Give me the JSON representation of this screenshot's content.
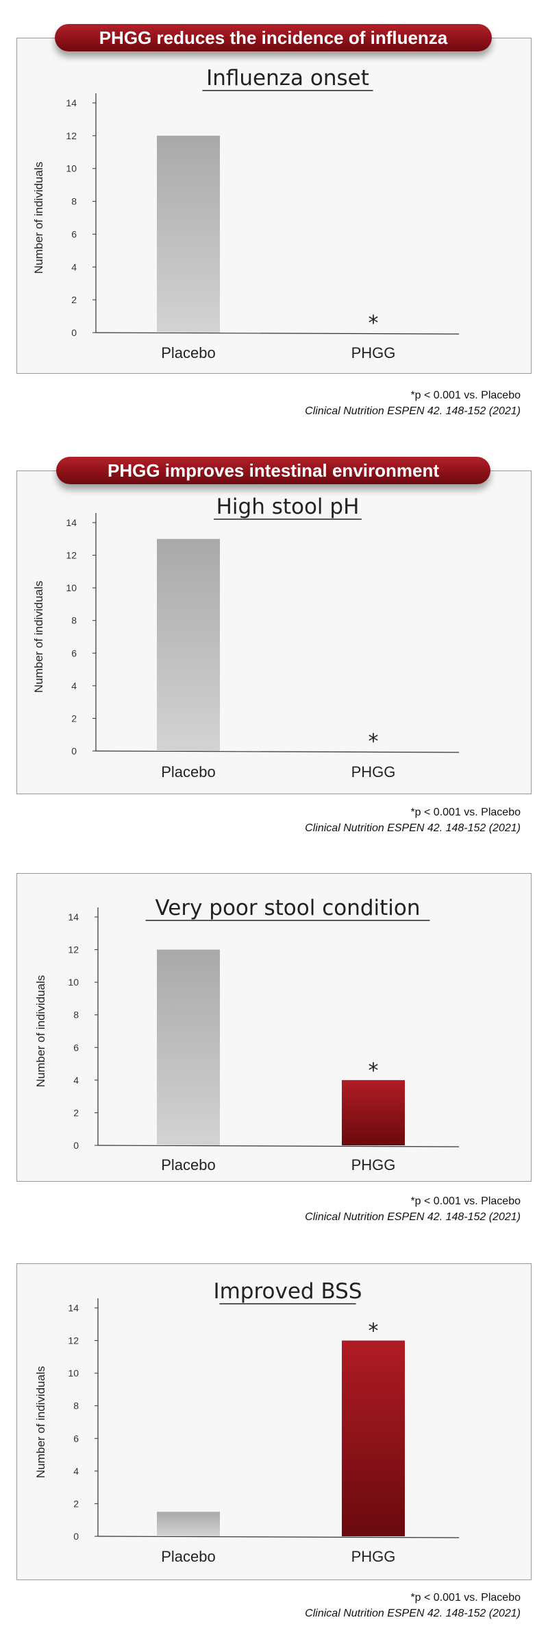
{
  "colors": {
    "placebo_top": "#a9a9a9",
    "placebo_bottom": "#d3d3d3",
    "phgg_top": "#b01c24",
    "phgg_bottom": "#6a0a0e",
    "banner": "#8e1119",
    "panel_bg": "#f7f7f7"
  },
  "sections": [
    {
      "banner": "PHGG reduces the incidence of influenza",
      "footnote": "*p < 0.001 vs. Placebo",
      "reference": "Clinical Nutrition ESPEN 42. 148-152 (2021)"
    },
    {
      "banner": "PHGG improves intestinal environment",
      "footnote": "*p < 0.001 vs. Placebo",
      "reference": "Clinical Nutrition ESPEN 42. 148-152 (2021)"
    },
    {
      "banner": "",
      "footnote": "*p < 0.001 vs. Placebo",
      "reference": "Clinical Nutrition ESPEN 42. 148-152 (2021)"
    },
    {
      "banner": "",
      "footnote": "*p < 0.001 vs. Placebo",
      "reference": "Clinical Nutrition ESPEN 42. 148-152 (2021)"
    }
  ],
  "chart_data": [
    {
      "type": "bar",
      "title": "Influenza onset",
      "ylabel": "Number of individuals",
      "xlabel": "",
      "categories": [
        "Placebo",
        "PHGG"
      ],
      "values": [
        12,
        0
      ],
      "significance": [
        "",
        "*"
      ],
      "ylim": [
        0,
        14
      ],
      "yticks": [
        0,
        2,
        4,
        6,
        8,
        10,
        12,
        14
      ],
      "grid": false
    },
    {
      "type": "bar",
      "title": "High stool pH",
      "ylabel": "Number of individuals",
      "xlabel": "",
      "categories": [
        "Placebo",
        "PHGG"
      ],
      "values": [
        13,
        0
      ],
      "significance": [
        "",
        "*"
      ],
      "ylim": [
        0,
        14
      ],
      "yticks": [
        0,
        2,
        4,
        6,
        8,
        10,
        12,
        14
      ],
      "grid": false
    },
    {
      "type": "bar",
      "title": "Very poor stool condition",
      "ylabel": "Number of individuals",
      "xlabel": "",
      "categories": [
        "Placebo",
        "PHGG"
      ],
      "values": [
        12,
        4
      ],
      "significance": [
        "",
        "*"
      ],
      "ylim": [
        0,
        14
      ],
      "yticks": [
        0,
        2,
        4,
        6,
        8,
        10,
        12,
        14
      ],
      "grid": false
    },
    {
      "type": "bar",
      "title": "Improved BSS",
      "ylabel": "Number of individuals",
      "xlabel": "",
      "categories": [
        "Placebo",
        "PHGG"
      ],
      "values": [
        1.5,
        12
      ],
      "significance": [
        "",
        "*"
      ],
      "ylim": [
        0,
        14
      ],
      "yticks": [
        0,
        2,
        4,
        6,
        8,
        10,
        12,
        14
      ],
      "grid": false
    }
  ]
}
